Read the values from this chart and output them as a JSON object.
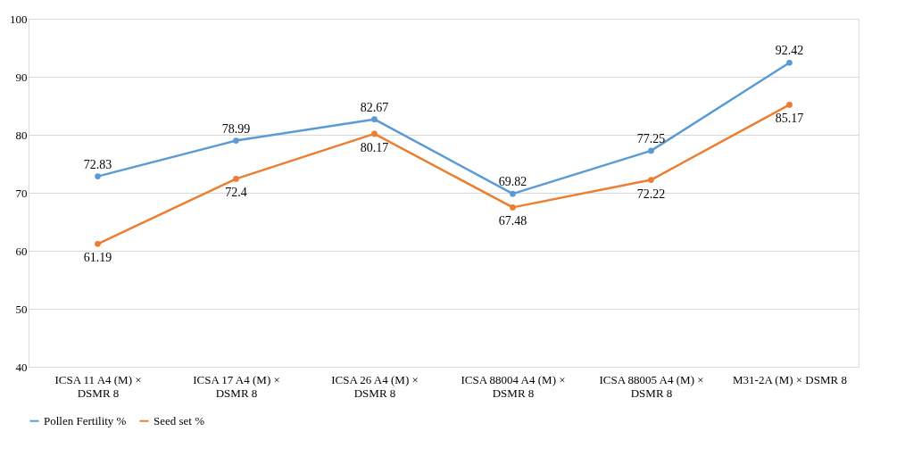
{
  "chart_data": {
    "type": "line",
    "categories": [
      "ICSA 11 A4 (M) × DSMR 8",
      "ICSA 17 A4 (M) × DSMR 8",
      "ICSA 26 A4 (M) × DSMR 8",
      "ICSA 88004 A4 (M) × DSMR 8",
      "ICSA 88005 A4 (M) × DSMR 8",
      "M31-2A (M) × DSMR 8"
    ],
    "series": [
      {
        "name": "Pollen Fertility %",
        "color": "#5b9bd5",
        "values": [
          72.83,
          78.99,
          82.67,
          69.82,
          77.25,
          92.42
        ]
      },
      {
        "name": "Seed set %",
        "color": "#ed7d31",
        "values": [
          61.19,
          72.4,
          80.17,
          67.48,
          72.22,
          85.17
        ]
      }
    ],
    "ylim": [
      40,
      100
    ],
    "yticks": [
      40,
      50,
      60,
      70,
      80,
      90,
      100
    ],
    "grid": "y",
    "legend": "bottom",
    "marker": "circle",
    "line_style": "solid",
    "data_labels": true
  }
}
